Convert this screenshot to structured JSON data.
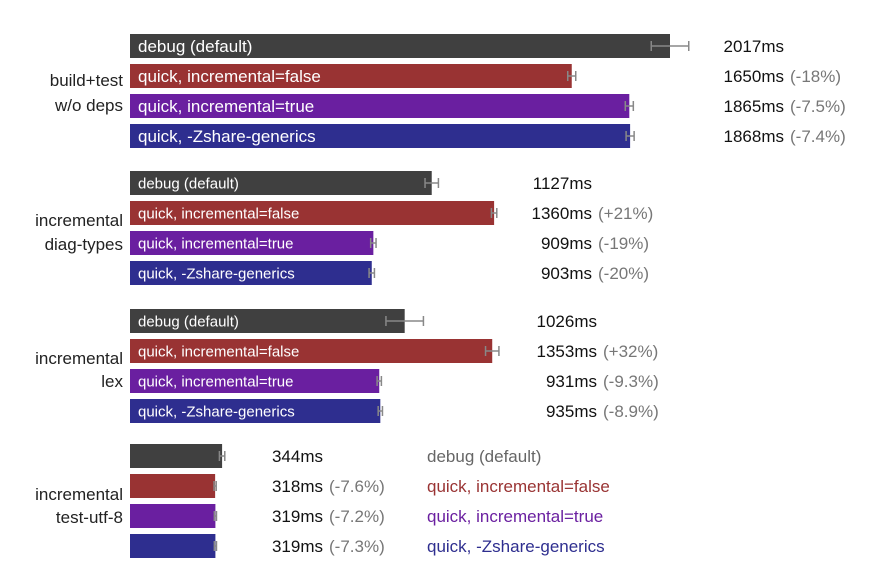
{
  "chart_data": {
    "type": "bar",
    "orientation": "horizontal",
    "unit": "ms",
    "series": [
      {
        "name": "debug (default)",
        "color": "#404040"
      },
      {
        "name": "quick, incremental=false",
        "color": "#993333"
      },
      {
        "name": "quick, incremental=true",
        "color": "#6a1fa0"
      },
      {
        "name": "quick, -Zshare-generics",
        "color": "#2e2e8f"
      }
    ],
    "groups": [
      {
        "label": [
          "build+test",
          "w/o deps"
        ],
        "bars": [
          {
            "series": 0,
            "value": 2017,
            "err": 70,
            "value_label": "2017ms",
            "delta_label": ""
          },
          {
            "series": 1,
            "value": 1650,
            "err": 15,
            "value_label": "1650ms",
            "delta_label": "(-18%)"
          },
          {
            "series": 2,
            "value": 1865,
            "err": 15,
            "value_label": "1865ms",
            "delta_label": "(-7.5%)"
          },
          {
            "series": 3,
            "value": 1868,
            "err": 15,
            "value_label": "1868ms",
            "delta_label": "(-7.4%)"
          }
        ]
      },
      {
        "label": [
          "incremental",
          "diag-types"
        ],
        "bars": [
          {
            "series": 0,
            "value": 1127,
            "err": 25,
            "value_label": "1127ms",
            "delta_label": ""
          },
          {
            "series": 1,
            "value": 1360,
            "err": 10,
            "value_label": "1360ms",
            "delta_label": "(+21%)"
          },
          {
            "series": 2,
            "value": 909,
            "err": 10,
            "value_label": "909ms",
            "delta_label": "(-19%)"
          },
          {
            "series": 3,
            "value": 903,
            "err": 10,
            "value_label": "903ms",
            "delta_label": "(-20%)"
          }
        ]
      },
      {
        "label": [
          "incremental",
          "lex"
        ],
        "bars": [
          {
            "series": 0,
            "value": 1026,
            "err": 70,
            "value_label": "1026ms",
            "delta_label": ""
          },
          {
            "series": 1,
            "value": 1353,
            "err": 25,
            "value_label": "1353ms",
            "delta_label": "(+32%)"
          },
          {
            "series": 2,
            "value": 931,
            "err": 8,
            "value_label": "931ms",
            "delta_label": "(-9.3%)"
          },
          {
            "series": 3,
            "value": 935,
            "err": 8,
            "value_label": "935ms",
            "delta_label": "(-8.9%)"
          }
        ]
      },
      {
        "label": [
          "incremental",
          "test-utf-8"
        ],
        "bars": [
          {
            "series": 0,
            "value": 344,
            "err": 10,
            "value_label": "344ms",
            "delta_label": ""
          },
          {
            "series": 1,
            "value": 318,
            "err": 4,
            "value_label": "318ms",
            "delta_label": "(-7.6%)"
          },
          {
            "series": 2,
            "value": 319,
            "err": 4,
            "value_label": "319ms",
            "delta_label": "(-7.2%)"
          },
          {
            "series": 3,
            "value": 319,
            "err": 4,
            "value_label": "319ms",
            "delta_label": "(-7.3%)"
          }
        ]
      }
    ]
  }
}
